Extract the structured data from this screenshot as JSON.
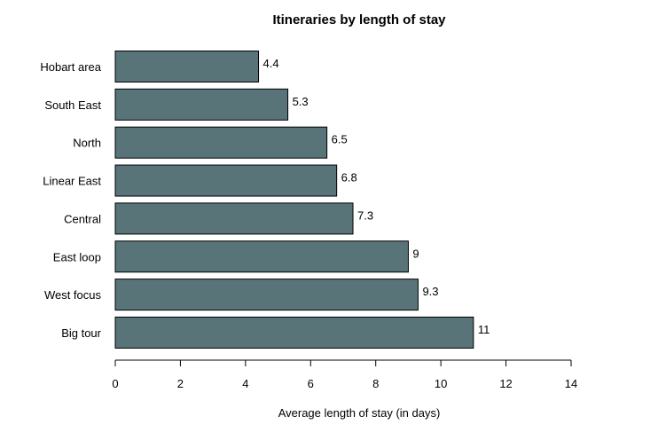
{
  "chart_data": {
    "type": "bar",
    "orientation": "horizontal",
    "title": "Itineraries by length of stay",
    "xlabel": "Average length of stay (in days)",
    "ylabel": "",
    "categories": [
      "Hobart area",
      "South East",
      "North",
      "Linear East",
      "Central",
      "East loop",
      "West focus",
      "Big tour"
    ],
    "values": [
      4.4,
      5.3,
      6.5,
      6.8,
      7.3,
      9,
      9.3,
      11
    ],
    "value_labels": [
      "4.4",
      "5.3",
      "6.5",
      "6.8",
      "7.3",
      "9",
      "9.3",
      "11"
    ],
    "xlim": [
      0,
      14
    ],
    "xticks": [
      0,
      2,
      4,
      6,
      8,
      10,
      12,
      14
    ],
    "xtick_labels": [
      "0",
      "2",
      "4",
      "6",
      "8",
      "10",
      "12",
      "14"
    ],
    "bar_color": "#587479",
    "grid": false,
    "legend": "none"
  }
}
